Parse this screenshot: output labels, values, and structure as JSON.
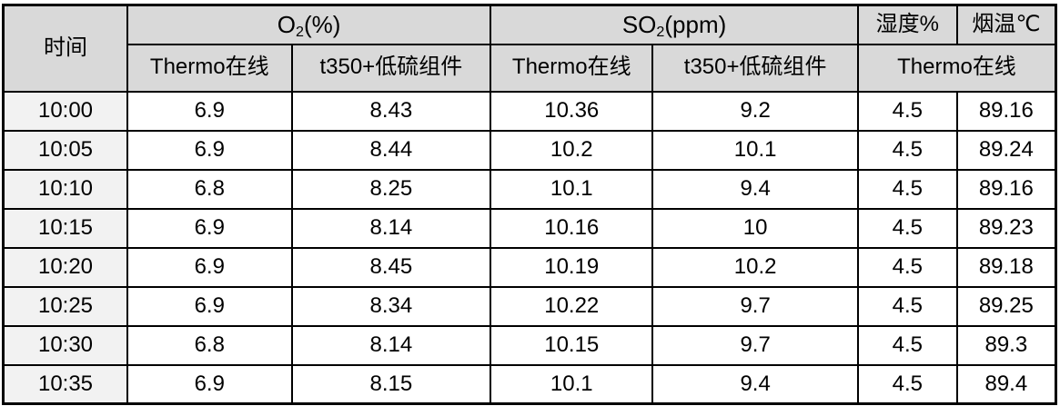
{
  "colors": {
    "header_bg": "#d9d9d9",
    "time_column_bg": "#f2f2f2",
    "cell_bg": "#ffffff",
    "border": "#000000",
    "text": "#000000"
  },
  "chart_data": {
    "type": "table",
    "title": "",
    "header": {
      "time_label": "时间",
      "o2_group": {
        "prefix": "O",
        "sub": "2",
        "suffix": "(%)"
      },
      "so2_group": {
        "prefix": "SO",
        "sub": "2",
        "suffix": "(ppm)"
      },
      "humidity_label": "湿度%",
      "temp_label": "烟温℃",
      "sub_headers": [
        "Thermo在线",
        "t350+低硫组件",
        "Thermo在线",
        "t350+低硫组件",
        "Thermo在线"
      ]
    },
    "columns": [
      "时间",
      "O2(%) Thermo在线",
      "O2(%) t350+低硫组件",
      "SO2(ppm) Thermo在线",
      "SO2(ppm) t350+低硫组件",
      "湿度% Thermo在线",
      "烟温℃ Thermo在线"
    ],
    "rows": [
      [
        "10:00",
        "6.9",
        "8.43",
        "10.36",
        "9.2",
        "4.5",
        "89.16"
      ],
      [
        "10:05",
        "6.9",
        "8.44",
        "10.2",
        "10.1",
        "4.5",
        "89.24"
      ],
      [
        "10:10",
        "6.8",
        "8.25",
        "10.1",
        "9.4",
        "4.5",
        "89.16"
      ],
      [
        "10:15",
        "6.9",
        "8.14",
        "10.16",
        "10",
        "4.5",
        "89.23"
      ],
      [
        "10:20",
        "6.9",
        "8.45",
        "10.19",
        "10.2",
        "4.5",
        "89.18"
      ],
      [
        "10:25",
        "6.9",
        "8.34",
        "10.22",
        "9.7",
        "4.5",
        "89.25"
      ],
      [
        "10:30",
        "6.8",
        "8.14",
        "10.15",
        "9.7",
        "4.5",
        "89.3"
      ],
      [
        "10:35",
        "6.9",
        "8.15",
        "10.1",
        "9.4",
        "4.5",
        "89.4"
      ]
    ]
  }
}
